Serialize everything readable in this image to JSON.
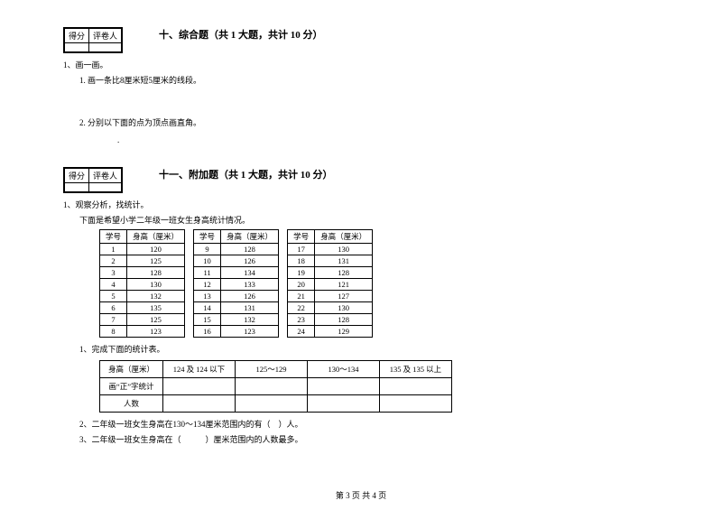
{
  "score_labels": {
    "score": "得分",
    "marker": "评卷人"
  },
  "section10": {
    "title": "十、综合题（共 1 大题，共计 10 分）",
    "q1": "1、画一画。",
    "q1_1": "1. 画一条比8厘米短5厘米的线段。",
    "q1_2": "2. 分别以下面的点为顶点画直角。",
    "dot": "."
  },
  "section11": {
    "title": "十一、附加题（共 1 大题，共计 10 分）",
    "q1": "1、观察分析，找统计。",
    "q1_desc": "下面是希望小学二年级一班女生身高统计情况。",
    "headers": {
      "id": "学号",
      "height": "身高（厘米）"
    },
    "rows_a": [
      {
        "id": "1",
        "h": "120"
      },
      {
        "id": "2",
        "h": "125"
      },
      {
        "id": "3",
        "h": "128"
      },
      {
        "id": "4",
        "h": "130"
      },
      {
        "id": "5",
        "h": "132"
      },
      {
        "id": "6",
        "h": "135"
      },
      {
        "id": "7",
        "h": "125"
      },
      {
        "id": "8",
        "h": "123"
      }
    ],
    "rows_b": [
      {
        "id": "9",
        "h": "128"
      },
      {
        "id": "10",
        "h": "126"
      },
      {
        "id": "11",
        "h": "134"
      },
      {
        "id": "12",
        "h": "133"
      },
      {
        "id": "13",
        "h": "126"
      },
      {
        "id": "14",
        "h": "131"
      },
      {
        "id": "15",
        "h": "132"
      },
      {
        "id": "16",
        "h": "123"
      }
    ],
    "rows_c": [
      {
        "id": "17",
        "h": "130"
      },
      {
        "id": "18",
        "h": "131"
      },
      {
        "id": "19",
        "h": "128"
      },
      {
        "id": "20",
        "h": "121"
      },
      {
        "id": "21",
        "h": "127"
      },
      {
        "id": "22",
        "h": "130"
      },
      {
        "id": "23",
        "h": "128"
      },
      {
        "id": "24",
        "h": "129"
      }
    ],
    "sub1": "1、完成下面的统计表。",
    "stat_headers": {
      "h0": "身高（厘米）",
      "h1": "124 及 124 以下",
      "h2": "125～129",
      "h3": "130～134",
      "h4": "135 及 135 以上"
    },
    "stat_rows": {
      "r1": "画“正”字统计",
      "r2": "人数"
    },
    "sub2": "2、二年级一班女生身高在130～134厘米范围内的有（　）人。",
    "sub3": "3、二年级一班女生身高在（　　　）厘米范围内的人数最多。"
  },
  "footer": "第  3  页  共  4 页"
}
